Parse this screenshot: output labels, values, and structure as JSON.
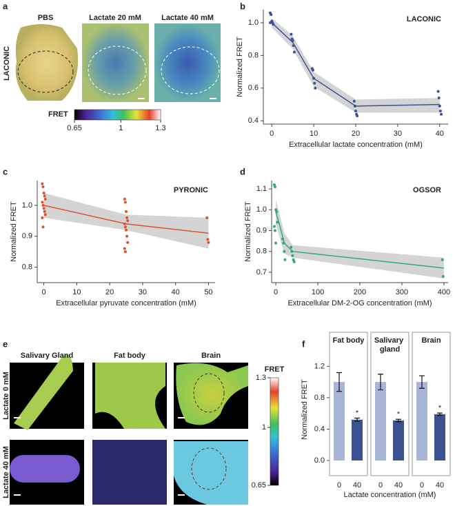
{
  "panel_a": {
    "panel": "a",
    "row_label": "LACONIC",
    "columns": [
      "PBS",
      "Lactate 20 mM",
      "Lactate 40 mM"
    ],
    "colorbar": {
      "title": "FRET",
      "ticks": [
        0.65,
        1,
        1.3
      ]
    }
  },
  "panel_e": {
    "panel": "e",
    "columns": [
      "Salivary Gland",
      "Fat body",
      "Brain"
    ],
    "rows": [
      "Lactate 0 mM",
      "Lactate 40 mM"
    ],
    "colorbar": {
      "title": "FRET",
      "ticks": [
        0.65,
        1,
        1.3
      ]
    }
  },
  "chart_data": [
    {
      "panel": "b",
      "type": "line",
      "title": "LACONIC",
      "x_label": "Extracellular lactate concentration (mM)",
      "y_label": "Normalized FRET",
      "x": [
        0,
        5,
        10,
        20,
        40
      ],
      "values": [
        1.0,
        0.88,
        0.66,
        0.49,
        0.5
      ],
      "band_lower": [
        0.97,
        0.84,
        0.61,
        0.45,
        0.45
      ],
      "band_upper": [
        1.03,
        0.92,
        0.7,
        0.53,
        0.54
      ],
      "points": {
        "x": [
          0,
          0,
          0,
          0,
          0,
          0,
          5,
          5,
          5,
          5,
          5,
          10,
          10,
          10,
          10,
          10,
          20,
          20,
          20,
          20,
          20,
          40,
          40,
          40,
          40,
          40
        ],
        "y": [
          1.06,
          1.05,
          1.01,
          1.0,
          0.99,
          1.0,
          0.93,
          0.9,
          0.89,
          0.86,
          0.82,
          0.72,
          0.71,
          0.66,
          0.63,
          0.6,
          0.52,
          0.49,
          0.46,
          0.44,
          0.43,
          0.58,
          0.54,
          0.49,
          0.46,
          0.44
        ]
      },
      "color": "#3b5295",
      "band_color": "#d4d4d4",
      "xlim": [
        -2,
        42
      ],
      "xticks": [
        0,
        10,
        20,
        30,
        40
      ],
      "ylim": [
        0.38,
        1.08
      ],
      "yticks": [
        0.4,
        0.6,
        0.8,
        {
          "value": 1,
          "label": "1.0"
        }
      ]
    },
    {
      "panel": "c",
      "type": "line",
      "title": "PYRONIC",
      "x_label": "Extracellular pyruvate concentration (mM)",
      "y_label": "Normalized FRET",
      "x": [
        0,
        25,
        50
      ],
      "values": [
        1.0,
        0.94,
        0.91
      ],
      "band_lower": [
        0.96,
        0.92,
        0.86
      ],
      "band_upper": [
        1.04,
        0.97,
        0.96
      ],
      "points": {
        "x": [
          0,
          0,
          0,
          0,
          0,
          0,
          0,
          0,
          0,
          0,
          0,
          0,
          25,
          25,
          25,
          25,
          25,
          25,
          25,
          25,
          25,
          25,
          25,
          25,
          50,
          50,
          50
        ],
        "y": [
          1.07,
          1.06,
          1.04,
          1.03,
          1.02,
          1.01,
          1.0,
          0.99,
          0.98,
          0.97,
          0.96,
          0.93,
          1.02,
          1.01,
          0.98,
          0.96,
          0.95,
          0.94,
          0.93,
          0.92,
          0.9,
          0.88,
          0.86,
          0.85,
          0.96,
          0.89,
          0.88
        ]
      },
      "color": "#d9532f",
      "band_color": "#d4d4d4",
      "xlim": [
        -2,
        52
      ],
      "xticks": [
        0,
        10,
        20,
        30,
        40,
        50
      ],
      "ylim": [
        0.75,
        1.08
      ],
      "yticks": [
        0.8,
        0.9,
        {
          "value": 1,
          "label": "1.0"
        }
      ]
    },
    {
      "panel": "d",
      "type": "line",
      "title": "OGSOR",
      "x_label": "Extracellular DM-2-OG concentration (mM)",
      "y_label": "Normalized FRET",
      "x": [
        0,
        10,
        20,
        40,
        400
      ],
      "values": [
        0.99,
        0.92,
        0.84,
        0.8,
        0.72
      ],
      "band_lower": [
        0.93,
        0.86,
        0.79,
        0.77,
        0.67
      ],
      "band_upper": [
        1.05,
        0.97,
        0.89,
        0.83,
        0.77
      ],
      "points": {
        "x": [
          0,
          0,
          0,
          0,
          0,
          0,
          0,
          0,
          20,
          20,
          20,
          20,
          40,
          40,
          40,
          40,
          40,
          400,
          400
        ],
        "y": [
          1.12,
          1.11,
          1.0,
          0.99,
          0.94,
          0.92,
          0.9,
          0.84,
          0.86,
          0.84,
          0.8,
          0.76,
          0.82,
          0.8,
          0.78,
          0.76,
          0.75,
          0.76,
          0.68
        ]
      },
      "color": "#2aa88a",
      "band_color": "#d4d4d4",
      "xlim": [
        -10,
        410
      ],
      "xticks": [
        0,
        100,
        200,
        300,
        400
      ],
      "ylim": [
        0.65,
        1.14
      ],
      "yticks": [
        0.7,
        0.8,
        0.9,
        {
          "value": 1,
          "label": "1.0"
        },
        1.1
      ]
    },
    {
      "panel": "f",
      "type": "bar",
      "y_label": "Normalized FRET",
      "x_label": "Lactate concentration (mM)",
      "ylim": [
        0,
        1.3
      ],
      "yticks": [
        {
          "value": 0,
          "label": "0.0"
        },
        0.4,
        0.8,
        1.2
      ],
      "colors": [
        "#a9b5d6",
        "#3c5190"
      ],
      "facets": [
        {
          "title": "Fat body",
          "categories": [
            "0",
            "40"
          ],
          "values": [
            1.0,
            0.52
          ],
          "errors": [
            0.12,
            0.02
          ],
          "annotations": [
            null,
            "*"
          ]
        },
        {
          "title": "Salivary gland",
          "categories": [
            "0",
            "40"
          ],
          "values": [
            1.0,
            0.51
          ],
          "errors": [
            0.1,
            0.015
          ],
          "annotations": [
            null,
            "*"
          ]
        },
        {
          "title": "Brain",
          "categories": [
            "0",
            "40"
          ],
          "values": [
            1.0,
            0.59
          ],
          "errors": [
            0.08,
            0.015
          ],
          "annotations": [
            null,
            "*"
          ]
        }
      ]
    }
  ]
}
